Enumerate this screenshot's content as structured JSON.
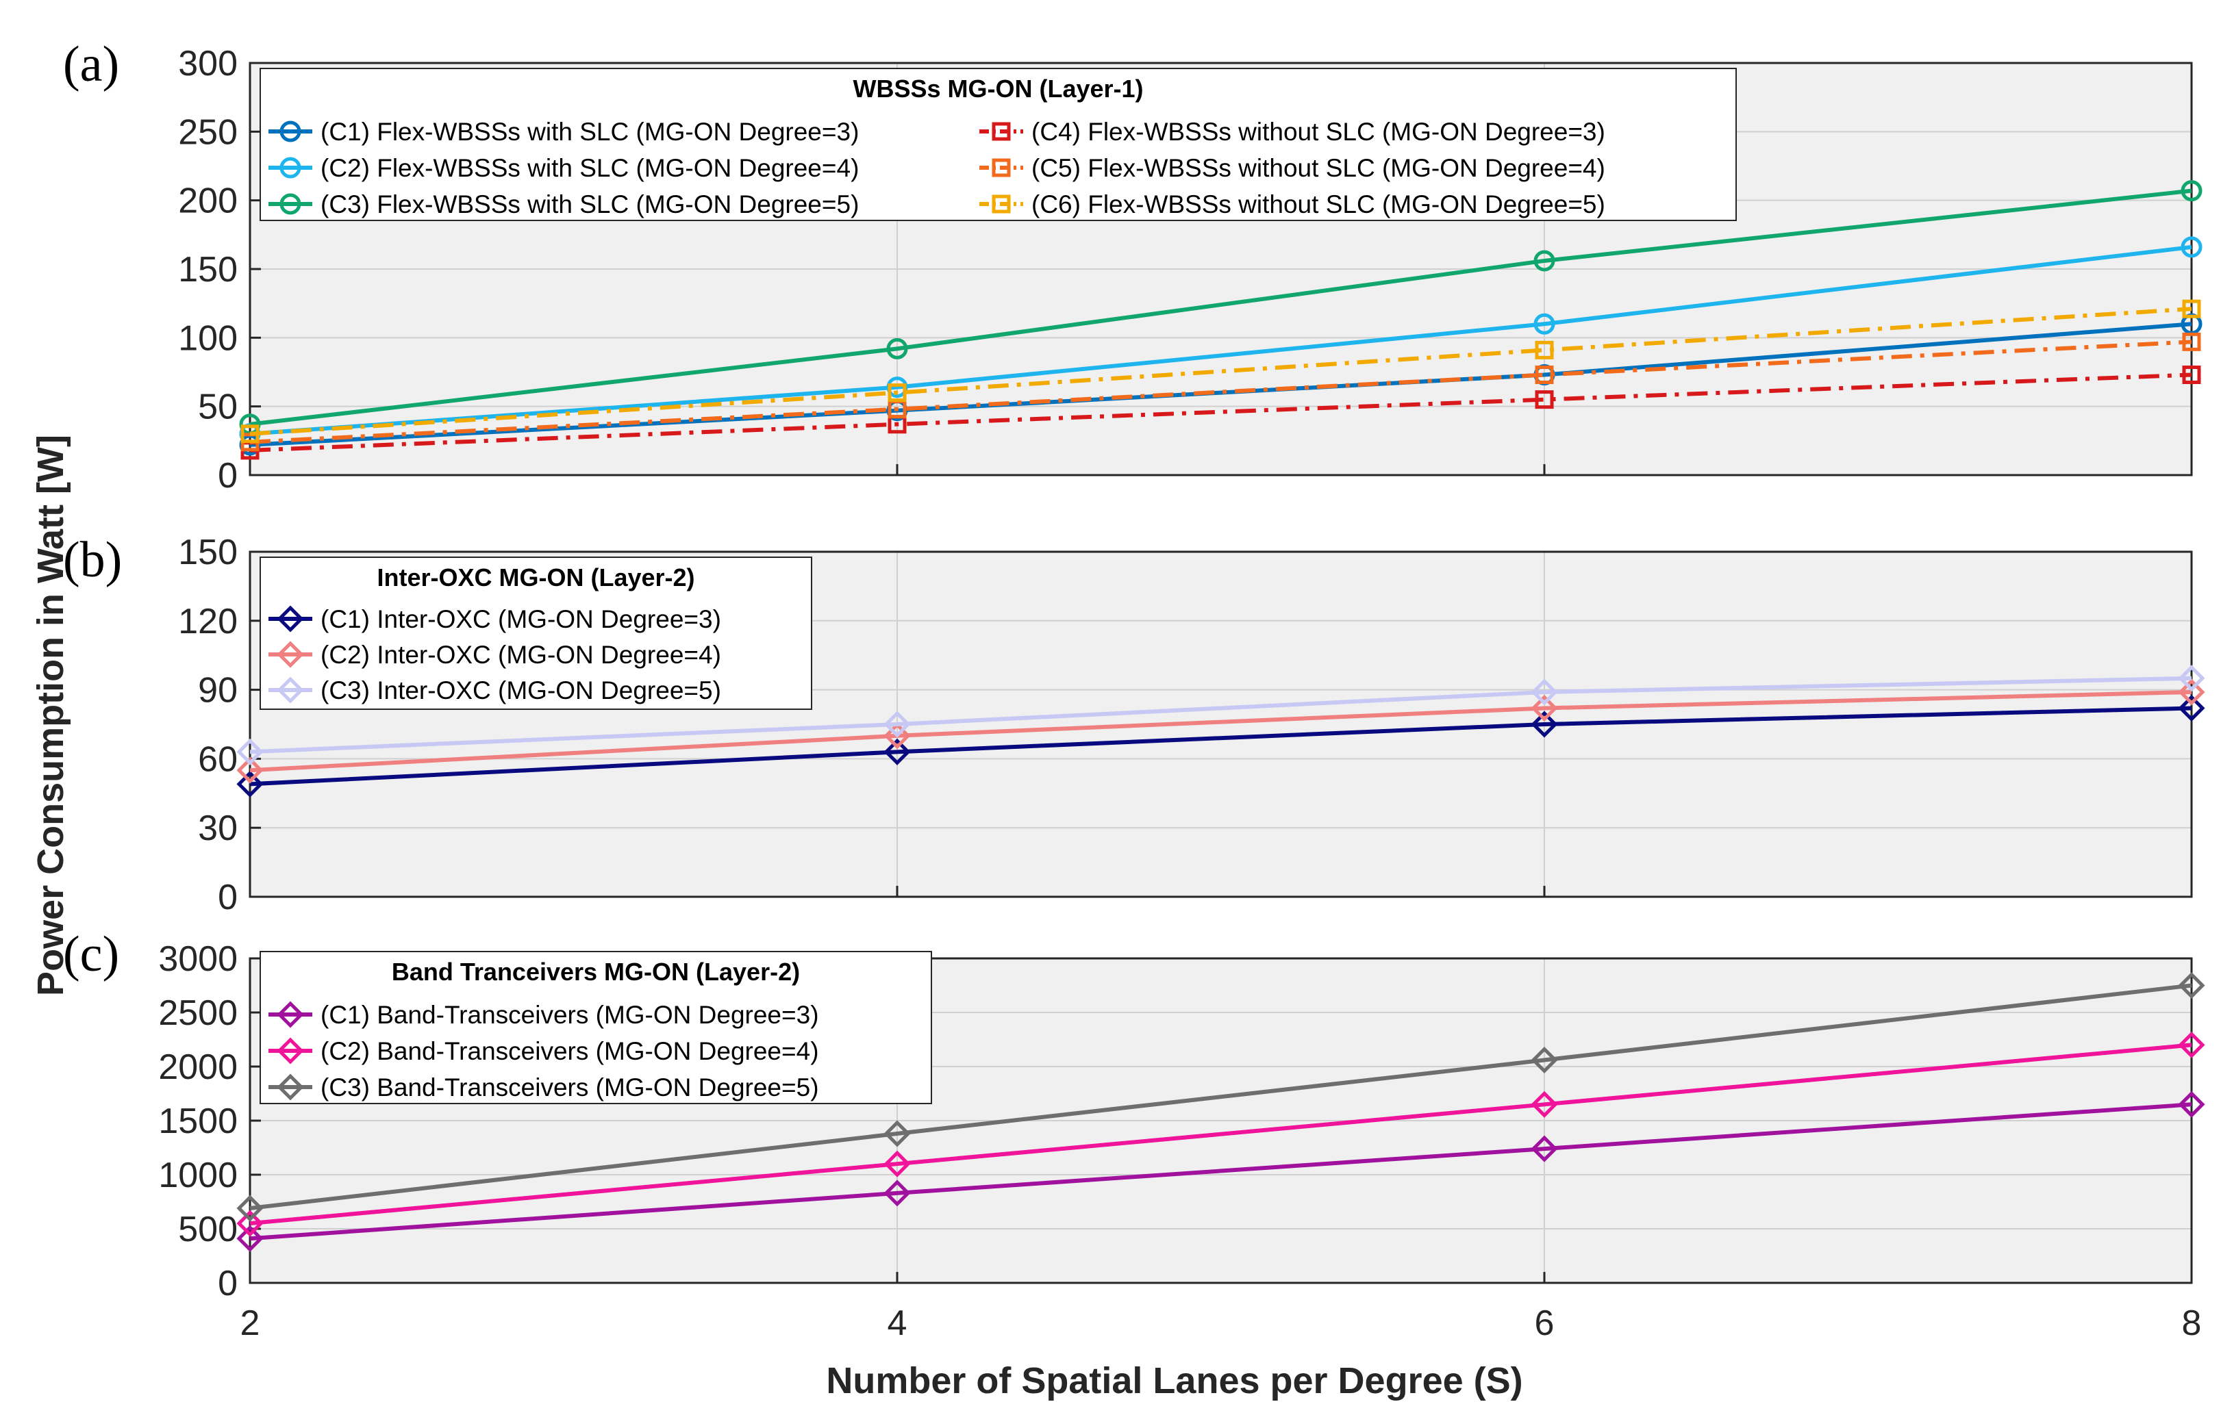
{
  "x_axis_label": "Number of Spatial Lanes per Degree (S)",
  "y_axis_label": "Power Consumption in Watt [W]",
  "chart_data": [
    {
      "type": "line",
      "panel_tag": "(a)",
      "legend_title": "WBSSs MG-ON (Layer-1)",
      "legend_columns": 2,
      "x": [
        2,
        4,
        6,
        8
      ],
      "xlim": [
        2,
        8
      ],
      "x_ticks": [
        2,
        4,
        6,
        8
      ],
      "ylim": [
        0,
        300
      ],
      "y_ticks": [
        0,
        50,
        100,
        150,
        200,
        250,
        300
      ],
      "grid": true,
      "legend_position": "top",
      "series": [
        {
          "name": "(C1) Flex-WBSSs with SLC (MG-ON Degree=3)",
          "values": [
            22,
            47,
            73,
            110
          ],
          "color": "#0072BD",
          "marker": "circle",
          "dash": "solid"
        },
        {
          "name": "(C2) Flex-WBSSs with SLC (MG-ON Degree=4)",
          "values": [
            30,
            64,
            110,
            166
          ],
          "color": "#1EB4EE",
          "marker": "circle",
          "dash": "solid"
        },
        {
          "name": "(C3) Flex-WBSSs with SLC (MG-ON Degree=5)",
          "values": [
            37,
            92,
            156,
            207
          ],
          "color": "#10A66E",
          "marker": "circle",
          "dash": "solid"
        },
        {
          "name": "(C4) Flex-WBSSs without SLC (MG-ON Degree=3)",
          "values": [
            18,
            37,
            55,
            73
          ],
          "color": "#D7191C",
          "marker": "square",
          "dash": "dashdot"
        },
        {
          "name": "(C5) Flex-WBSSs without SLC (MG-ON Degree=4)",
          "values": [
            24,
            48,
            73,
            97
          ],
          "color": "#F26B1D",
          "marker": "square",
          "dash": "dashdot"
        },
        {
          "name": "(C6) Flex-WBSSs without SLC (MG-ON Degree=5)",
          "values": [
            30,
            60,
            91,
            121
          ],
          "color": "#F2A900",
          "marker": "square",
          "dash": "dashdot"
        }
      ]
    },
    {
      "type": "line",
      "panel_tag": "(b)",
      "legend_title": "Inter-OXC MG-ON (Layer-2)",
      "legend_columns": 1,
      "x": [
        2,
        4,
        6,
        8
      ],
      "xlim": [
        2,
        8
      ],
      "x_ticks": [
        2,
        4,
        6,
        8
      ],
      "ylim": [
        0,
        150
      ],
      "y_ticks": [
        0,
        30,
        60,
        90,
        120,
        150
      ],
      "grid": true,
      "legend_position": "top-left",
      "series": [
        {
          "name": "(C1) Inter-OXC (MG-ON Degree=3)",
          "values": [
            49,
            63,
            75,
            82
          ],
          "color": "#0A0A80",
          "marker": "diamond",
          "dash": "solid"
        },
        {
          "name": "(C2) Inter-OXC (MG-ON Degree=4)",
          "values": [
            55,
            70,
            82,
            89
          ],
          "color": "#F08080",
          "marker": "diamond",
          "dash": "solid"
        },
        {
          "name": "(C3) Inter-OXC (MG-ON Degree=5)",
          "values": [
            63,
            75,
            89,
            95
          ],
          "color": "#C8C8F5",
          "marker": "diamond",
          "dash": "solid"
        }
      ]
    },
    {
      "type": "line",
      "panel_tag": "(c)",
      "legend_title": "Band Tranceivers MG-ON (Layer-2)",
      "legend_columns": 1,
      "x": [
        2,
        4,
        6,
        8
      ],
      "xlim": [
        2,
        8
      ],
      "x_ticks": [
        2,
        4,
        6,
        8
      ],
      "ylim": [
        0,
        3000
      ],
      "y_ticks": [
        0,
        500,
        1000,
        1500,
        2000,
        2500,
        3000
      ],
      "grid": true,
      "legend_position": "top-left",
      "series": [
        {
          "name": "(C1) Band-Transceivers (MG-ON Degree=3)",
          "values": [
            410,
            830,
            1240,
            1650
          ],
          "color": "#A0129E",
          "marker": "diamond",
          "dash": "solid"
        },
        {
          "name": "(C2) Band-Transceivers (MG-ON Degree=4)",
          "values": [
            550,
            1100,
            1650,
            2200
          ],
          "color": "#F0149B",
          "marker": "diamond",
          "dash": "solid"
        },
        {
          "name": "(C3) Band-Transceivers (MG-ON Degree=5)",
          "values": [
            690,
            1380,
            2060,
            2750
          ],
          "color": "#6E6E6E",
          "marker": "diamond",
          "dash": "solid"
        }
      ]
    }
  ]
}
